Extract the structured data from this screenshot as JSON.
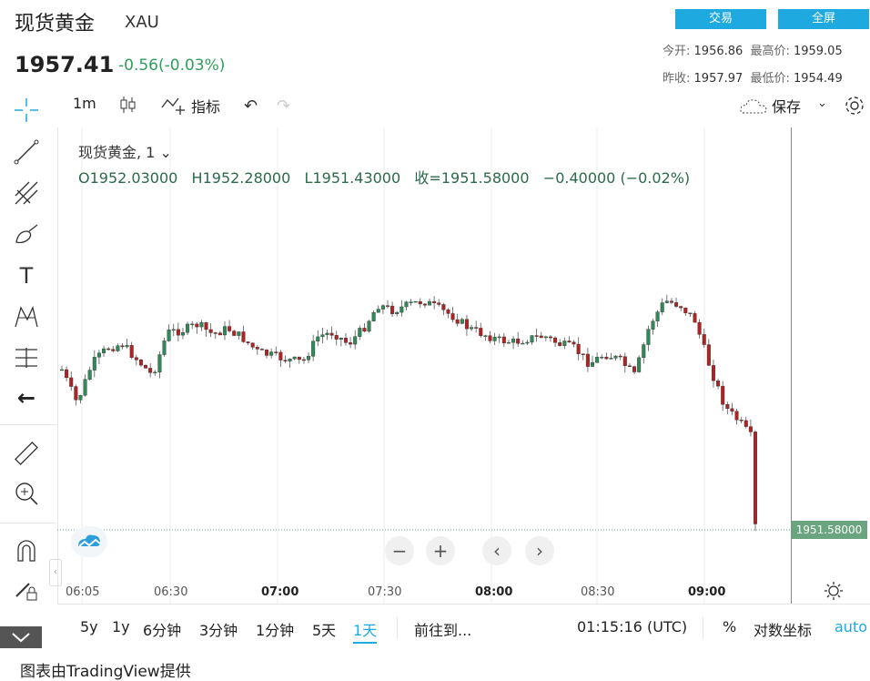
{
  "header": {
    "title": "现货黄金",
    "symbol": "XAU",
    "price": "1957.41",
    "change": "-0.56(-0.03%)",
    "trade_button": "交易",
    "fullscreen_button": "全屏",
    "stats": {
      "open_label": "今开:",
      "open_value": "1956.86",
      "high_label": "最高价:",
      "high_value": "1959.05",
      "prev_close_label": "昨收:",
      "prev_close_value": "1957.97",
      "low_label": "最低价:",
      "low_value": "1954.49"
    }
  },
  "toolbar": {
    "interval": "1m",
    "indicators_label": "指标",
    "save_label": "保存"
  },
  "chart_header": {
    "series_label": "现货黄金, 1",
    "ohlc": "O1952.03000   H1952.28000   L1951.43000   收=1951.58000   −0.40000 (−0.02%)"
  },
  "chart_data": {
    "type": "candlestick",
    "x_tick_labels": [
      "06:05",
      "06:30",
      "07:00",
      "07:30",
      "08:00",
      "08:30",
      "09:00"
    ],
    "bold_ticks": [
      "07:00",
      "08:00",
      "09:00"
    ],
    "last_price_label": "1951.58000",
    "close_path_relative": [
      0.63,
      0.8,
      0.6,
      0.52,
      0.5,
      0.58,
      0.66,
      0.44,
      0.43,
      0.4,
      0.45,
      0.42,
      0.47,
      0.54,
      0.56,
      0.58,
      0.59,
      0.46,
      0.44,
      0.5,
      0.42,
      0.3,
      0.33,
      0.3,
      0.28,
      0.32,
      0.36,
      0.42,
      0.45,
      0.48,
      0.49,
      0.47,
      0.46,
      0.5,
      0.52,
      0.6,
      0.55,
      0.58,
      0.66,
      0.4,
      0.28,
      0.3,
      0.38,
      0.62,
      0.82,
      0.9,
      1.0
    ],
    "colors": {
      "up": "#2e8b57",
      "down": "#b22222"
    }
  },
  "bottom_bar": {
    "ranges": [
      "5y",
      "1y",
      "6分钟",
      "3分钟",
      "1分钟",
      "5天",
      "1天"
    ],
    "selected_range": "1天",
    "goto_label": "前往到...",
    "time": "01:15:16 (UTC)",
    "percent_label": "%",
    "log_label": "对数坐标",
    "auto_label": "auto"
  },
  "footer": {
    "credit": "图表由TradingView提供"
  }
}
